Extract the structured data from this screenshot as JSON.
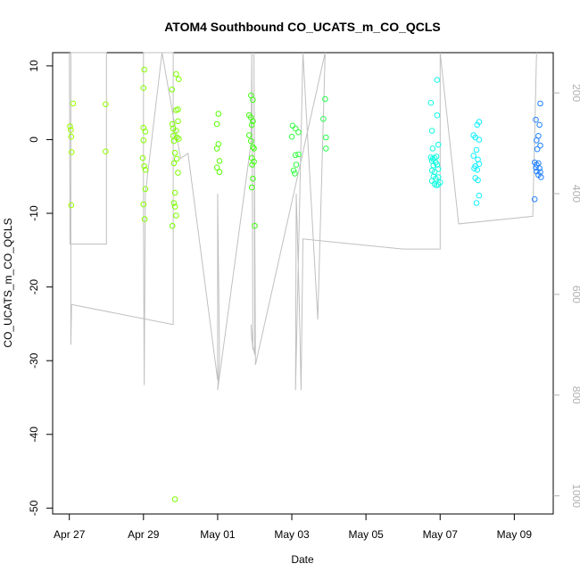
{
  "chart_data": {
    "type": "scatter",
    "title": "ATOM4 Southbound CO_UCATS_m_CO_QCLS",
    "xlabel": "Date",
    "ylabel": "CO_UCATS_m_CO_QCLS",
    "x_unit": "days since Apr 27 (tick labels are dates)",
    "x_ticks": [
      {
        "x": 0,
        "label": "Apr 27"
      },
      {
        "x": 2,
        "label": "Apr 29"
      },
      {
        "x": 4,
        "label": "May 01"
      },
      {
        "x": 6,
        "label": "May 03"
      },
      {
        "x": 8,
        "label": "May 05"
      },
      {
        "x": 10,
        "label": "May 07"
      },
      {
        "x": 12,
        "label": "May 09"
      }
    ],
    "y_ticks": [
      {
        "y": 10,
        "label": "10"
      },
      {
        "y": 0,
        "label": "0"
      },
      {
        "y": -10,
        "label": "-10"
      },
      {
        "y": -20,
        "label": "-20"
      },
      {
        "y": -30,
        "label": "-30"
      },
      {
        "y": -40,
        "label": "-40"
      },
      {
        "y": -50,
        "label": "-50"
      }
    ],
    "y2_ticks": [
      {
        "v": 200,
        "label": "200"
      },
      {
        "v": 400,
        "label": "400"
      },
      {
        "v": 600,
        "label": "600"
      },
      {
        "v": 800,
        "label": "800"
      },
      {
        "v": 1000,
        "label": "1000"
      }
    ],
    "xlim": [
      -0.45,
      13.05
    ],
    "ylim": [
      -50.8,
      11.8
    ],
    "y2lim": [
      1036,
      120
    ],
    "grid": false,
    "legend": "none",
    "secondary_line_color": "#c0c0c0",
    "points": [
      {
        "x": 0.02,
        "y": 1.8,
        "color": "#9cff00"
      },
      {
        "x": 0.04,
        "y": 1.3,
        "color": "#9cff00"
      },
      {
        "x": 0.05,
        "y": 0.4,
        "color": "#9cff00"
      },
      {
        "x": 0.06,
        "y": -1.7,
        "color": "#9cff00"
      },
      {
        "x": 0.05,
        "y": -8.9,
        "color": "#9cff00"
      },
      {
        "x": 0.1,
        "y": 4.9,
        "color": "#9cff00"
      },
      {
        "x": 0.98,
        "y": 4.8,
        "color": "#94ff00"
      },
      {
        "x": 0.98,
        "y": -1.6,
        "color": "#94ff00"
      },
      {
        "x": 2.02,
        "y": 9.5,
        "color": "#84ff00"
      },
      {
        "x": 2.0,
        "y": 7.0,
        "color": "#84ff00"
      },
      {
        "x": 2.0,
        "y": 1.6,
        "color": "#84ff00"
      },
      {
        "x": 2.05,
        "y": 1.1,
        "color": "#84ff00"
      },
      {
        "x": 2.0,
        "y": -0.1,
        "color": "#84ff00"
      },
      {
        "x": 1.98,
        "y": -2.5,
        "color": "#84ff00"
      },
      {
        "x": 2.02,
        "y": -3.6,
        "color": "#84ff00"
      },
      {
        "x": 2.05,
        "y": -4.1,
        "color": "#84ff00"
      },
      {
        "x": 2.05,
        "y": -6.7,
        "color": "#84ff00"
      },
      {
        "x": 2.0,
        "y": -8.8,
        "color": "#84ff00"
      },
      {
        "x": 2.03,
        "y": -10.8,
        "color": "#84ff00"
      },
      {
        "x": 2.77,
        "y": 6.8,
        "color": "#7cff00"
      },
      {
        "x": 2.78,
        "y": 2.1,
        "color": "#7cff00"
      },
      {
        "x": 2.8,
        "y": 1.5,
        "color": "#7cff00"
      },
      {
        "x": 2.8,
        "y": 0.5,
        "color": "#7cff00"
      },
      {
        "x": 2.82,
        "y": -0.2,
        "color": "#7cff00"
      },
      {
        "x": 2.85,
        "y": -1.8,
        "color": "#7cff00"
      },
      {
        "x": 2.82,
        "y": -3.2,
        "color": "#7cff00"
      },
      {
        "x": 2.85,
        "y": -7.2,
        "color": "#7cff00"
      },
      {
        "x": 2.82,
        "y": -8.6,
        "color": "#7cff00"
      },
      {
        "x": 2.85,
        "y": -9.1,
        "color": "#7cff00"
      },
      {
        "x": 2.78,
        "y": -11.7,
        "color": "#7cff00"
      },
      {
        "x": 2.88,
        "y": -10.3,
        "color": "#7cff00"
      },
      {
        "x": 2.88,
        "y": 8.9,
        "color": "#7cff00"
      },
      {
        "x": 2.95,
        "y": 8.2,
        "color": "#7cff00"
      },
      {
        "x": 2.88,
        "y": 4.0,
        "color": "#7cff00"
      },
      {
        "x": 2.93,
        "y": 4.1,
        "color": "#7cff00"
      },
      {
        "x": 2.93,
        "y": 2.5,
        "color": "#7cff00"
      },
      {
        "x": 2.88,
        "y": 1.2,
        "color": "#7cff00"
      },
      {
        "x": 2.9,
        "y": 0.3,
        "color": "#7cff00"
      },
      {
        "x": 2.95,
        "y": 0.1,
        "color": "#7cff00"
      },
      {
        "x": 2.9,
        "y": -2.6,
        "color": "#7cff00"
      },
      {
        "x": 2.93,
        "y": -4.5,
        "color": "#7cff00"
      },
      {
        "x": 2.85,
        "y": -48.8,
        "color": "#7cff00"
      },
      {
        "x": 4.02,
        "y": 3.5,
        "color": "#58ff00"
      },
      {
        "x": 3.98,
        "y": 2.1,
        "color": "#58ff00"
      },
      {
        "x": 4.02,
        "y": -0.6,
        "color": "#58ff00"
      },
      {
        "x": 3.98,
        "y": -1.2,
        "color": "#58ff00"
      },
      {
        "x": 4.05,
        "y": -2.9,
        "color": "#58ff00"
      },
      {
        "x": 3.98,
        "y": -3.8,
        "color": "#58ff00"
      },
      {
        "x": 4.05,
        "y": -4.4,
        "color": "#58ff00"
      },
      {
        "x": 4.9,
        "y": 6.0,
        "color": "#40ff10"
      },
      {
        "x": 4.95,
        "y": 5.4,
        "color": "#40ff10"
      },
      {
        "x": 4.85,
        "y": 3.3,
        "color": "#40ff10"
      },
      {
        "x": 4.9,
        "y": 3.0,
        "color": "#40ff10"
      },
      {
        "x": 4.95,
        "y": 2.5,
        "color": "#40ff10"
      },
      {
        "x": 4.92,
        "y": 2.0,
        "color": "#40ff10"
      },
      {
        "x": 4.85,
        "y": 0.6,
        "color": "#40ff10"
      },
      {
        "x": 4.9,
        "y": -0.2,
        "color": "#40ff10"
      },
      {
        "x": 4.95,
        "y": -1.0,
        "color": "#40ff10"
      },
      {
        "x": 4.98,
        "y": -1.2,
        "color": "#40ff10"
      },
      {
        "x": 4.92,
        "y": -2.5,
        "color": "#40ff10"
      },
      {
        "x": 4.98,
        "y": -3.0,
        "color": "#40ff10"
      },
      {
        "x": 4.93,
        "y": -3.4,
        "color": "#40ff10"
      },
      {
        "x": 4.95,
        "y": -5.3,
        "color": "#40ff10"
      },
      {
        "x": 4.92,
        "y": -6.5,
        "color": "#40ff10"
      },
      {
        "x": 5.0,
        "y": -11.7,
        "color": "#40ff10"
      },
      {
        "x": 6.02,
        "y": 1.9,
        "color": "#30ff40"
      },
      {
        "x": 6.1,
        "y": 1.5,
        "color": "#30ff40"
      },
      {
        "x": 6.18,
        "y": 1.0,
        "color": "#30ff40"
      },
      {
        "x": 6.0,
        "y": 0.4,
        "color": "#30ff40"
      },
      {
        "x": 6.1,
        "y": -2.1,
        "color": "#30ff40"
      },
      {
        "x": 6.18,
        "y": -2.0,
        "color": "#30ff40"
      },
      {
        "x": 6.12,
        "y": -3.4,
        "color": "#30ff40"
      },
      {
        "x": 6.05,
        "y": -4.2,
        "color": "#30ff40"
      },
      {
        "x": 6.08,
        "y": -4.6,
        "color": "#30ff40"
      },
      {
        "x": 6.9,
        "y": 5.5,
        "color": "#28ff50"
      },
      {
        "x": 6.85,
        "y": 2.8,
        "color": "#28ff50"
      },
      {
        "x": 6.92,
        "y": 0.3,
        "color": "#28ff50"
      },
      {
        "x": 6.92,
        "y": -1.2,
        "color": "#28ff50"
      },
      {
        "x": 9.75,
        "y": 5.0,
        "color": "#10ffe0"
      },
      {
        "x": 9.92,
        "y": 8.1,
        "color": "#10ffe8"
      },
      {
        "x": 9.92,
        "y": 3.3,
        "color": "#10ffe8"
      },
      {
        "x": 9.95,
        "y": -0.7,
        "color": "#10ffe8"
      },
      {
        "x": 9.78,
        "y": 1.2,
        "color": "#10ffe0"
      },
      {
        "x": 9.8,
        "y": -1.2,
        "color": "#10ffe0"
      },
      {
        "x": 9.75,
        "y": -2.4,
        "color": "#10ffe0"
      },
      {
        "x": 9.8,
        "y": -2.6,
        "color": "#10ffe0"
      },
      {
        "x": 9.85,
        "y": -2.5,
        "color": "#10ffe0"
      },
      {
        "x": 9.9,
        "y": -2.3,
        "color": "#10ffe0"
      },
      {
        "x": 9.78,
        "y": -2.9,
        "color": "#10ffe0"
      },
      {
        "x": 9.88,
        "y": -3.1,
        "color": "#10ffe0"
      },
      {
        "x": 9.82,
        "y": -3.5,
        "color": "#10ffe0"
      },
      {
        "x": 9.92,
        "y": -3.4,
        "color": "#10ffe0"
      },
      {
        "x": 9.78,
        "y": -4.2,
        "color": "#10ffe0"
      },
      {
        "x": 9.85,
        "y": -4.4,
        "color": "#10ffe0"
      },
      {
        "x": 9.95,
        "y": -4.0,
        "color": "#10ffe0"
      },
      {
        "x": 9.82,
        "y": -5.0,
        "color": "#10ffe0"
      },
      {
        "x": 9.88,
        "y": -5.3,
        "color": "#10ffe0"
      },
      {
        "x": 9.95,
        "y": -5.1,
        "color": "#10ffe0"
      },
      {
        "x": 9.78,
        "y": -5.6,
        "color": "#10ffe0"
      },
      {
        "x": 9.85,
        "y": -6.0,
        "color": "#10ffe0"
      },
      {
        "x": 9.9,
        "y": -6.2,
        "color": "#10ffe0"
      },
      {
        "x": 9.95,
        "y": -6.1,
        "color": "#10ffe0"
      },
      {
        "x": 10.0,
        "y": -5.8,
        "color": "#10ffe0"
      },
      {
        "x": 10.9,
        "y": 0.6,
        "color": "#10f0ff"
      },
      {
        "x": 10.95,
        "y": 0.3,
        "color": "#10f0ff"
      },
      {
        "x": 11.05,
        "y": 0.0,
        "color": "#10f0ff"
      },
      {
        "x": 10.98,
        "y": -1.4,
        "color": "#10f0ff"
      },
      {
        "x": 10.9,
        "y": -2.2,
        "color": "#10f0ff"
      },
      {
        "x": 11.02,
        "y": -2.7,
        "color": "#10f0ff"
      },
      {
        "x": 10.95,
        "y": -3.6,
        "color": "#10f0ff"
      },
      {
        "x": 11.05,
        "y": -3.3,
        "color": "#10f0ff"
      },
      {
        "x": 10.92,
        "y": -3.9,
        "color": "#10f0ff"
      },
      {
        "x": 11.0,
        "y": -4.1,
        "color": "#10f0ff"
      },
      {
        "x": 10.95,
        "y": -5.2,
        "color": "#10f0ff"
      },
      {
        "x": 11.02,
        "y": -5.5,
        "color": "#10f0ff"
      },
      {
        "x": 11.05,
        "y": -7.6,
        "color": "#10f0ff"
      },
      {
        "x": 11.0,
        "y": 2.0,
        "color": "#10f0ff"
      },
      {
        "x": 11.05,
        "y": 2.4,
        "color": "#10f0ff"
      },
      {
        "x": 10.98,
        "y": -8.6,
        "color": "#10f0ff"
      },
      {
        "x": 12.58,
        "y": 2.7,
        "color": "#2080ff"
      },
      {
        "x": 12.7,
        "y": 4.9,
        "color": "#2080ff"
      },
      {
        "x": 12.68,
        "y": 2.0,
        "color": "#2080ff"
      },
      {
        "x": 12.65,
        "y": 0.5,
        "color": "#2080ff"
      },
      {
        "x": 12.6,
        "y": -0.1,
        "color": "#2080ff"
      },
      {
        "x": 12.7,
        "y": -0.8,
        "color": "#2080ff"
      },
      {
        "x": 12.62,
        "y": -1.3,
        "color": "#2080ff"
      },
      {
        "x": 12.55,
        "y": -3.1,
        "color": "#2080ff"
      },
      {
        "x": 12.6,
        "y": -3.4,
        "color": "#2080ff"
      },
      {
        "x": 12.65,
        "y": -3.2,
        "color": "#2080ff"
      },
      {
        "x": 12.58,
        "y": -3.8,
        "color": "#2080ff"
      },
      {
        "x": 12.68,
        "y": -3.9,
        "color": "#2080ff"
      },
      {
        "x": 12.6,
        "y": -4.3,
        "color": "#2080ff"
      },
      {
        "x": 12.7,
        "y": -4.4,
        "color": "#2080ff"
      },
      {
        "x": 12.65,
        "y": -4.8,
        "color": "#2080ff"
      },
      {
        "x": 12.72,
        "y": -5.1,
        "color": "#2080ff"
      },
      {
        "x": 12.55,
        "y": -8.1,
        "color": "#2080ff"
      }
    ],
    "secondary_series": {
      "axis": "right",
      "name": "",
      "points": [
        [
          0.0,
          120
        ],
        [
          0.02,
          500
        ],
        [
          1.0,
          500
        ],
        [
          1.0,
          120
        ],
        [
          0.04,
          120
        ],
        [
          0.04,
          700
        ],
        [
          0.06,
          620
        ],
        [
          2.8,
          660
        ],
        [
          2.8,
          120
        ],
        [
          2.0,
          120
        ],
        [
          2.0,
          450
        ],
        [
          2.02,
          780
        ],
        [
          2.05,
          400
        ],
        [
          2.5,
          120
        ],
        [
          3.0,
          330
        ],
        [
          3.2,
          320
        ],
        [
          4.0,
          770
        ],
        [
          4.0,
          400
        ],
        [
          4.05,
          730
        ],
        [
          4.0,
          790
        ],
        [
          4.9,
          300
        ],
        [
          4.92,
          120
        ],
        [
          4.95,
          710
        ],
        [
          4.9,
          660
        ],
        [
          4.92,
          690
        ],
        [
          5.0,
          720
        ],
        [
          4.98,
          120
        ],
        [
          5.02,
          740
        ],
        [
          6.9,
          120
        ],
        [
          6.7,
          650
        ],
        [
          6.3,
          120
        ],
        [
          6.1,
          790
        ],
        [
          6.12,
          400
        ],
        [
          6.2,
          610
        ],
        [
          6.25,
          790
        ],
        [
          6.3,
          490
        ],
        [
          9.0,
          510
        ],
        [
          10.0,
          510
        ],
        [
          10.0,
          120
        ],
        [
          10.5,
          460
        ],
        [
          12.5,
          445
        ],
        [
          12.6,
          120
        ]
      ]
    }
  }
}
